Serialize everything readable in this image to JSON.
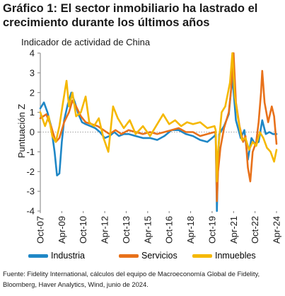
{
  "title": "Gráfico 1: El sector inmobiliario ha lastrado el crecimiento durante los últimos años",
  "chart_data": {
    "type": "line",
    "subtitle": "Indicador de actividad de China",
    "ylabel": "Puntuación Z",
    "ylim": [
      -4,
      4
    ],
    "yticks": [
      -4,
      -3,
      -2,
      -1,
      0,
      1,
      2,
      3,
      4
    ],
    "xlim": [
      "2007-10",
      "2024-04"
    ],
    "xtick_labels": [
      "Oct-07",
      "Apr-09",
      "Oct-10",
      "Apr-12",
      "Oct-13",
      "Apr-15",
      "Oct-16",
      "Apr-18",
      "Oct-19",
      "Apr-21",
      "Oct-22",
      "Apr-24"
    ],
    "grid": false,
    "legend_position": "bottom",
    "series": [
      {
        "name": "Industria",
        "color": "#1f87c6",
        "points": [
          [
            "2007-10",
            1.2
          ],
          [
            "2008-01",
            1.5
          ],
          [
            "2008-04",
            1.0
          ],
          [
            "2008-07",
            0.3
          ],
          [
            "2008-10",
            -1.0
          ],
          [
            "2008-12",
            -2.2
          ],
          [
            "2009-02",
            -2.1
          ],
          [
            "2009-04",
            -0.5
          ],
          [
            "2009-06",
            0.6
          ],
          [
            "2009-09",
            1.4
          ],
          [
            "2009-12",
            2.0
          ],
          [
            "2010-03",
            1.5
          ],
          [
            "2010-06",
            0.9
          ],
          [
            "2010-09",
            0.5
          ],
          [
            "2010-12",
            0.4
          ],
          [
            "2011-04",
            0.3
          ],
          [
            "2011-08",
            0.2
          ],
          [
            "2011-12",
            0.0
          ],
          [
            "2012-04",
            -0.3
          ],
          [
            "2012-08",
            -0.2
          ],
          [
            "2012-12",
            0.0
          ],
          [
            "2013-04",
            -0.2
          ],
          [
            "2013-08",
            -0.1
          ],
          [
            "2013-12",
            -0.1
          ],
          [
            "2014-06",
            -0.2
          ],
          [
            "2014-12",
            -0.3
          ],
          [
            "2015-06",
            -0.3
          ],
          [
            "2015-12",
            -0.4
          ],
          [
            "2016-06",
            -0.2
          ],
          [
            "2016-12",
            0.1
          ],
          [
            "2017-06",
            0.1
          ],
          [
            "2017-12",
            -0.1
          ],
          [
            "2018-06",
            -0.2
          ],
          [
            "2018-12",
            -0.4
          ],
          [
            "2019-06",
            -0.5
          ],
          [
            "2019-12",
            -0.2
          ],
          [
            "2020-01",
            -0.1
          ],
          [
            "2020-02",
            -4.0
          ],
          [
            "2020-03",
            -1.5
          ],
          [
            "2020-04",
            -0.1
          ],
          [
            "2020-08",
            0.3
          ],
          [
            "2020-12",
            0.9
          ],
          [
            "2021-03",
            2.8
          ],
          [
            "2021-06",
            0.6
          ],
          [
            "2021-10",
            -0.3
          ],
          [
            "2022-01",
            0.1
          ],
          [
            "2022-04",
            -1.4
          ],
          [
            "2022-07",
            -0.3
          ],
          [
            "2022-10",
            -0.6
          ],
          [
            "2023-01",
            -0.5
          ],
          [
            "2023-04",
            0.6
          ],
          [
            "2023-07",
            -0.1
          ],
          [
            "2023-10",
            0.0
          ],
          [
            "2024-01",
            -0.1
          ],
          [
            "2024-04",
            -0.1
          ]
        ]
      },
      {
        "name": "Servicios",
        "color": "#e8711a",
        "points": [
          [
            "2007-10",
            0.7
          ],
          [
            "2008-03",
            0.9
          ],
          [
            "2008-07",
            0.3
          ],
          [
            "2008-11",
            -0.5
          ],
          [
            "2009-02",
            -0.3
          ],
          [
            "2009-06",
            0.5
          ],
          [
            "2009-10",
            1.0
          ],
          [
            "2010-01",
            1.6
          ],
          [
            "2010-04",
            1.3
          ],
          [
            "2010-08",
            0.8
          ],
          [
            "2010-12",
            0.5
          ],
          [
            "2011-05",
            0.4
          ],
          [
            "2011-10",
            0.3
          ],
          [
            "2012-03",
            0.1
          ],
          [
            "2012-08",
            -0.1
          ],
          [
            "2013-01",
            0.1
          ],
          [
            "2013-06",
            -0.1
          ],
          [
            "2013-12",
            0.1
          ],
          [
            "2014-06",
            0.0
          ],
          [
            "2014-12",
            -0.1
          ],
          [
            "2015-06",
            0.0
          ],
          [
            "2015-12",
            -0.1
          ],
          [
            "2016-06",
            0.0
          ],
          [
            "2016-12",
            0.1
          ],
          [
            "2017-06",
            0.2
          ],
          [
            "2017-12",
            0.0
          ],
          [
            "2018-06",
            0.0
          ],
          [
            "2018-12",
            -0.2
          ],
          [
            "2019-06",
            -0.1
          ],
          [
            "2019-12",
            0.0
          ],
          [
            "2020-01",
            -0.1
          ],
          [
            "2020-02",
            -3.5
          ],
          [
            "2020-03",
            -2.0
          ],
          [
            "2020-05",
            -0.8
          ],
          [
            "2020-08",
            0.2
          ],
          [
            "2020-12",
            1.0
          ],
          [
            "2021-02",
            2.2
          ],
          [
            "2021-04",
            4.0
          ],
          [
            "2021-06",
            1.5
          ],
          [
            "2021-09",
            0.3
          ],
          [
            "2021-12",
            -0.5
          ],
          [
            "2022-02",
            -0.2
          ],
          [
            "2022-04",
            -1.8
          ],
          [
            "2022-06",
            -2.5
          ],
          [
            "2022-08",
            -1.0
          ],
          [
            "2022-11",
            -0.5
          ],
          [
            "2023-01",
            0.5
          ],
          [
            "2023-03",
            2.0
          ],
          [
            "2023-04",
            3.1
          ],
          [
            "2023-06",
            1.5
          ],
          [
            "2023-09",
            0.5
          ],
          [
            "2023-12",
            1.3
          ],
          [
            "2024-02",
            0.8
          ],
          [
            "2024-04",
            -0.6
          ]
        ]
      },
      {
        "name": "Inmuebles",
        "color": "#f5b800",
        "points": [
          [
            "2007-10",
            1.0
          ],
          [
            "2008-02",
            0.3
          ],
          [
            "2008-05",
            0.8
          ],
          [
            "2008-08",
            -0.2
          ],
          [
            "2008-11",
            -0.5
          ],
          [
            "2009-02",
            0.3
          ],
          [
            "2009-05",
            1.5
          ],
          [
            "2009-08",
            2.6
          ],
          [
            "2009-10",
            1.3
          ],
          [
            "2010-01",
            2.0
          ],
          [
            "2010-04",
            0.8
          ],
          [
            "2010-08",
            1.0
          ],
          [
            "2010-12",
            1.8
          ],
          [
            "2011-03",
            0.5
          ],
          [
            "2011-07",
            0.3
          ],
          [
            "2011-11",
            0.7
          ],
          [
            "2012-03",
            -0.3
          ],
          [
            "2012-07",
            -1.0
          ],
          [
            "2012-11",
            1.3
          ],
          [
            "2013-03",
            0.7
          ],
          [
            "2013-08",
            0.2
          ],
          [
            "2014-01",
            0.6
          ],
          [
            "2014-06",
            -0.1
          ],
          [
            "2014-12",
            0.3
          ],
          [
            "2015-06",
            -0.2
          ],
          [
            "2015-12",
            0.4
          ],
          [
            "2016-05",
            0.9
          ],
          [
            "2016-10",
            0.4
          ],
          [
            "2017-03",
            0.6
          ],
          [
            "2017-08",
            0.3
          ],
          [
            "2018-01",
            0.5
          ],
          [
            "2018-06",
            0.4
          ],
          [
            "2018-12",
            0.5
          ],
          [
            "2019-06",
            0.2
          ],
          [
            "2019-12",
            0.3
          ],
          [
            "2020-01",
            0.1
          ],
          [
            "2020-02",
            -2.5
          ],
          [
            "2020-03",
            -1.0
          ],
          [
            "2020-06",
            1.0
          ],
          [
            "2020-09",
            1.3
          ],
          [
            "2021-01",
            2.5
          ],
          [
            "2021-03",
            4.0
          ],
          [
            "2021-05",
            1.8
          ],
          [
            "2021-08",
            0.6
          ],
          [
            "2021-11",
            -0.4
          ],
          [
            "2022-02",
            -0.3
          ],
          [
            "2022-05",
            -0.9
          ],
          [
            "2022-08",
            -0.5
          ],
          [
            "2022-11",
            -0.7
          ],
          [
            "2023-02",
            0.0
          ],
          [
            "2023-05",
            -0.3
          ],
          [
            "2023-08",
            -0.8
          ],
          [
            "2023-11",
            -1.0
          ],
          [
            "2024-02",
            -1.5
          ],
          [
            "2024-04",
            -0.9
          ]
        ]
      }
    ]
  },
  "source": "Fuente: Fidelity International, cálculos del equipo de Macroeconomía Global de Fidelity, Bloomberg, Haver Analytics, Wind, junio de 2024."
}
